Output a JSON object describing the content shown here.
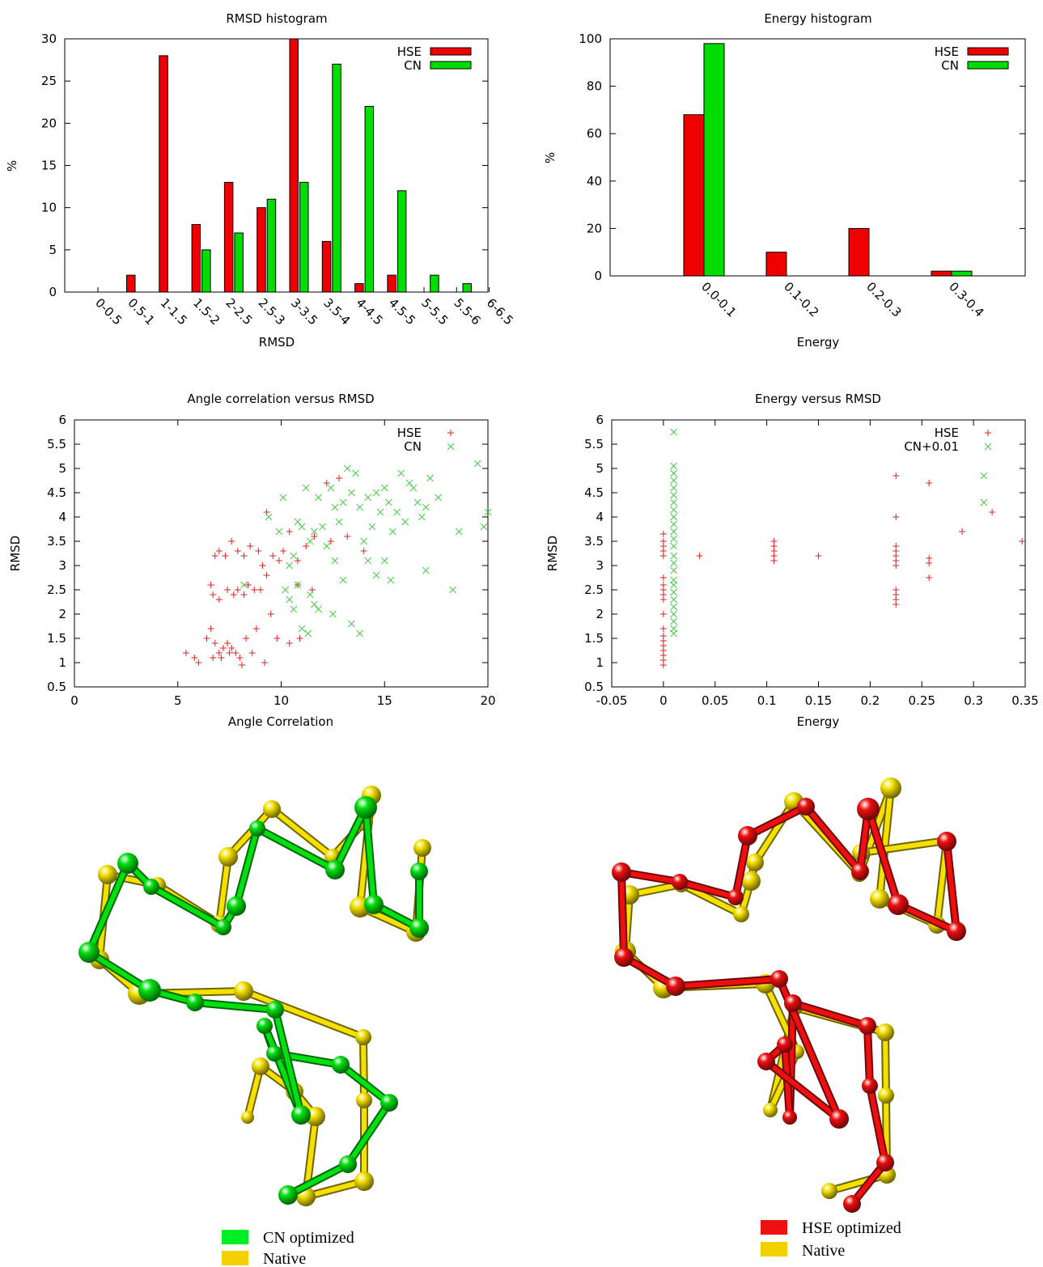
{
  "colors": {
    "hse": "#ee0000",
    "cn": "#00dd00",
    "native": "#f2e000",
    "hse_scatter": "#dd2222",
    "cn_scatter": "#44cc44"
  },
  "chart_data": [
    {
      "id": "rmsd-histogram",
      "type": "bar",
      "title": "RMSD histogram",
      "xlabel": "RMSD",
      "ylabel": "%",
      "ylim": [
        0,
        30
      ],
      "yticks": [
        "0",
        "5",
        "10",
        "15",
        "20",
        "25",
        "30"
      ],
      "categories": [
        "0-0.5",
        "0.5-1",
        "1-1.5",
        "1.5-2",
        "2-2.5",
        "2.5-3",
        "3-3.5",
        "3.5-4",
        "4-4.5",
        "4.5-5",
        "5-5.5",
        "5.5-6",
        "6-6.5"
      ],
      "series": [
        {
          "name": "HSE",
          "values": [
            0,
            2,
            28,
            8,
            13,
            10,
            30,
            6,
            1,
            2,
            0,
            0,
            0
          ]
        },
        {
          "name": "CN",
          "values": [
            0,
            0,
            0,
            5,
            7,
            11,
            13,
            27,
            22,
            12,
            2,
            1,
            0
          ]
        }
      ],
      "legend": "top-right",
      "grid": false
    },
    {
      "id": "energy-histogram",
      "type": "bar",
      "title": "Energy histogram",
      "xlabel": "Energy",
      "ylabel": "%",
      "ylim": [
        0,
        100
      ],
      "yticks": [
        "0",
        "20",
        "40",
        "60",
        "80",
        "100"
      ],
      "categories": [
        "0.0-0.1",
        "0.1-0.2",
        "0.2-0.3",
        "0.3-0.4"
      ],
      "series": [
        {
          "name": "HSE",
          "values": [
            68,
            10,
            20,
            2
          ]
        },
        {
          "name": "CN",
          "values": [
            98,
            0,
            0,
            2
          ]
        }
      ],
      "legend": "top-right",
      "grid": false
    },
    {
      "id": "angle-vs-rmsd",
      "type": "scatter",
      "title": "Angle correlation versus RMSD",
      "xlabel": "Angle Correlation",
      "ylabel": "RMSD",
      "xlim": [
        0,
        20
      ],
      "ylim": [
        0.5,
        6
      ],
      "xticks": [
        "0",
        "5",
        "10",
        "15",
        "20"
      ],
      "yticks": [
        "0.5",
        "1",
        "1.5",
        "2",
        "2.5",
        "3",
        "3.5",
        "4",
        "4.5",
        "5",
        "5.5",
        "6"
      ],
      "series": [
        {
          "name": "HSE",
          "marker": "+",
          "points": [
            [
              5.4,
              1.2
            ],
            [
              5.8,
              1.1
            ],
            [
              6.0,
              1.0
            ],
            [
              6.4,
              1.5
            ],
            [
              6.6,
              1.7
            ],
            [
              6.7,
              1.1
            ],
            [
              6.8,
              1.4
            ],
            [
              7.0,
              1.2
            ],
            [
              7.1,
              1.1
            ],
            [
              7.2,
              1.3
            ],
            [
              7.4,
              1.4
            ],
            [
              7.5,
              1.2
            ],
            [
              7.6,
              1.3
            ],
            [
              7.8,
              1.2
            ],
            [
              8.0,
              1.1
            ],
            [
              8.1,
              0.95
            ],
            [
              8.3,
              1.5
            ],
            [
              8.6,
              1.2
            ],
            [
              8.8,
              1.7
            ],
            [
              9.2,
              1.0
            ],
            [
              6.6,
              2.6
            ],
            [
              6.7,
              2.4
            ],
            [
              7.0,
              2.3
            ],
            [
              7.4,
              2.5
            ],
            [
              7.7,
              2.4
            ],
            [
              7.9,
              2.5
            ],
            [
              8.2,
              2.4
            ],
            [
              8.4,
              2.6
            ],
            [
              8.7,
              2.5
            ],
            [
              9.0,
              2.5
            ],
            [
              9.5,
              2.0
            ],
            [
              9.8,
              1.5
            ],
            [
              6.8,
              3.2
            ],
            [
              7.0,
              3.3
            ],
            [
              7.3,
              3.2
            ],
            [
              7.6,
              3.5
            ],
            [
              7.9,
              3.3
            ],
            [
              8.2,
              3.2
            ],
            [
              8.5,
              3.4
            ],
            [
              8.9,
              3.3
            ],
            [
              9.1,
              3.0
            ],
            [
              9.3,
              2.8
            ],
            [
              9.6,
              3.2
            ],
            [
              9.9,
              3.1
            ],
            [
              10.1,
              3.3
            ],
            [
              9.3,
              4.1
            ],
            [
              10.4,
              3.7
            ],
            [
              10.8,
              3.1
            ],
            [
              11.2,
              3.4
            ],
            [
              11.6,
              3.6
            ],
            [
              12.4,
              3.5
            ],
            [
              13.2,
              3.6
            ],
            [
              14.0,
              3.3
            ],
            [
              11.5,
              2.5
            ],
            [
              10.8,
              2.6
            ],
            [
              12.2,
              4.7
            ],
            [
              12.8,
              4.8
            ],
            [
              10.4,
              1.4
            ],
            [
              10.9,
              1.5
            ]
          ]
        },
        {
          "name": "CN",
          "marker": "x",
          "points": [
            [
              8.2,
              2.6
            ],
            [
              9.4,
              4.0
            ],
            [
              9.9,
              3.7
            ],
            [
              10.1,
              4.4
            ],
            [
              10.4,
              3.0
            ],
            [
              10.6,
              3.2
            ],
            [
              10.8,
              3.9
            ],
            [
              11.0,
              3.8
            ],
            [
              11.2,
              4.6
            ],
            [
              11.4,
              3.5
            ],
            [
              11.6,
              3.7
            ],
            [
              11.8,
              4.4
            ],
            [
              12.0,
              3.8
            ],
            [
              12.2,
              3.4
            ],
            [
              12.4,
              4.6
            ],
            [
              12.6,
              4.2
            ],
            [
              12.8,
              3.9
            ],
            [
              13.0,
              4.3
            ],
            [
              13.2,
              5.0
            ],
            [
              13.4,
              4.5
            ],
            [
              13.6,
              4.9
            ],
            [
              13.8,
              4.2
            ],
            [
              14.0,
              3.5
            ],
            [
              14.2,
              4.4
            ],
            [
              14.4,
              3.8
            ],
            [
              14.6,
              4.5
            ],
            [
              14.8,
              4.1
            ],
            [
              15.0,
              4.6
            ],
            [
              15.2,
              4.3
            ],
            [
              15.4,
              3.7
            ],
            [
              15.6,
              4.1
            ],
            [
              15.8,
              4.9
            ],
            [
              16.0,
              3.9
            ],
            [
              16.2,
              4.7
            ],
            [
              16.4,
              4.6
            ],
            [
              16.6,
              4.3
            ],
            [
              16.8,
              4.0
            ],
            [
              17.0,
              4.2
            ],
            [
              17.2,
              4.8
            ],
            [
              17.6,
              4.4
            ],
            [
              18.6,
              3.7
            ],
            [
              19.5,
              5.1
            ],
            [
              19.8,
              3.8
            ],
            [
              20.0,
              4.1
            ],
            [
              18.3,
              2.5
            ],
            [
              17.0,
              2.9
            ],
            [
              10.4,
              2.3
            ],
            [
              10.6,
              2.1
            ],
            [
              10.8,
              2.6
            ],
            [
              11.0,
              1.7
            ],
            [
              11.3,
              1.6
            ],
            [
              11.6,
              2.2
            ],
            [
              11.8,
              2.1
            ],
            [
              12.5,
              2.0
            ],
            [
              13.0,
              2.7
            ],
            [
              13.4,
              1.8
            ],
            [
              13.8,
              1.6
            ],
            [
              14.2,
              3.1
            ],
            [
              14.6,
              2.8
            ],
            [
              15.3,
              2.7
            ],
            [
              15.0,
              3.1
            ],
            [
              12.6,
              3.1
            ],
            [
              11.4,
              2.4
            ],
            [
              10.2,
              2.5
            ]
          ]
        }
      ],
      "legend": "top-right",
      "grid": false
    },
    {
      "id": "energy-vs-rmsd",
      "type": "scatter",
      "title": "Energy versus RMSD",
      "xlabel": "Energy",
      "ylabel": "RMSD",
      "xlim": [
        -0.05,
        0.35
      ],
      "ylim": [
        0.5,
        6
      ],
      "xticks": [
        "-0.05",
        "0",
        "0.05",
        "0.1",
        "0.15",
        "0.2",
        "0.25",
        "0.3",
        "0.35"
      ],
      "yticks": [
        "0.5",
        "1",
        "1.5",
        "2",
        "2.5",
        "3",
        "3.5",
        "4",
        "4.5",
        "5",
        "5.5",
        "6"
      ],
      "series": [
        {
          "name": "HSE",
          "marker": "+",
          "points": [
            [
              0,
              0.95
            ],
            [
              0,
              1.05
            ],
            [
              0,
              1.15
            ],
            [
              0,
              1.25
            ],
            [
              0,
              1.35
            ],
            [
              0,
              1.45
            ],
            [
              0,
              1.55
            ],
            [
              0,
              1.7
            ],
            [
              0,
              2.0
            ],
            [
              0,
              2.3
            ],
            [
              0,
              2.4
            ],
            [
              0,
              2.5
            ],
            [
              0,
              2.6
            ],
            [
              0,
              2.75
            ],
            [
              0,
              3.2
            ],
            [
              0,
              3.3
            ],
            [
              0,
              3.4
            ],
            [
              0,
              3.5
            ],
            [
              0,
              3.65
            ],
            [
              0.035,
              3.2
            ],
            [
              0.107,
              3.1
            ],
            [
              0.107,
              3.2
            ],
            [
              0.107,
              3.3
            ],
            [
              0.107,
              3.4
            ],
            [
              0.107,
              3.5
            ],
            [
              0.15,
              3.2
            ],
            [
              0.225,
              2.2
            ],
            [
              0.225,
              2.3
            ],
            [
              0.225,
              2.4
            ],
            [
              0.225,
              2.5
            ],
            [
              0.225,
              3.0
            ],
            [
              0.225,
              3.1
            ],
            [
              0.225,
              3.2
            ],
            [
              0.225,
              3.3
            ],
            [
              0.225,
              3.4
            ],
            [
              0.225,
              4.0
            ],
            [
              0.225,
              4.85
            ],
            [
              0.257,
              2.75
            ],
            [
              0.257,
              3.05
            ],
            [
              0.257,
              3.15
            ],
            [
              0.257,
              4.7
            ],
            [
              0.289,
              3.7
            ],
            [
              0.318,
              4.1
            ],
            [
              0.347,
              3.5
            ]
          ]
        },
        {
          "name": "CN+0.01",
          "marker": "x",
          "points": [
            [
              0.01,
              1.6
            ],
            [
              0.01,
              1.7
            ],
            [
              0.01,
              1.85
            ],
            [
              0.01,
              2.0
            ],
            [
              0.01,
              2.15
            ],
            [
              0.01,
              2.3
            ],
            [
              0.01,
              2.45
            ],
            [
              0.01,
              2.6
            ],
            [
              0.01,
              2.7
            ],
            [
              0.01,
              2.9
            ],
            [
              0.01,
              3.05
            ],
            [
              0.01,
              3.2
            ],
            [
              0.01,
              3.4
            ],
            [
              0.01,
              3.55
            ],
            [
              0.01,
              3.7
            ],
            [
              0.01,
              3.85
            ],
            [
              0.01,
              4.0
            ],
            [
              0.01,
              4.15
            ],
            [
              0.01,
              4.3
            ],
            [
              0.01,
              4.45
            ],
            [
              0.01,
              4.6
            ],
            [
              0.01,
              4.75
            ],
            [
              0.01,
              4.9
            ],
            [
              0.01,
              5.05
            ],
            [
              0.01,
              5.75
            ],
            [
              0.31,
              4.3
            ],
            [
              0.31,
              4.85
            ]
          ]
        }
      ],
      "legend": "top-right",
      "grid": false
    }
  ],
  "molecules": [
    {
      "id": "cn-molecule",
      "legend": [
        {
          "label": "CN optimized",
          "color": "#00dd00"
        },
        {
          "label": "Native",
          "color": "#f2e000"
        }
      ]
    },
    {
      "id": "hse-molecule",
      "legend": [
        {
          "label": "HSE optimized",
          "color": "#ee0000"
        },
        {
          "label": "Native",
          "color": "#f2e000"
        }
      ]
    }
  ]
}
